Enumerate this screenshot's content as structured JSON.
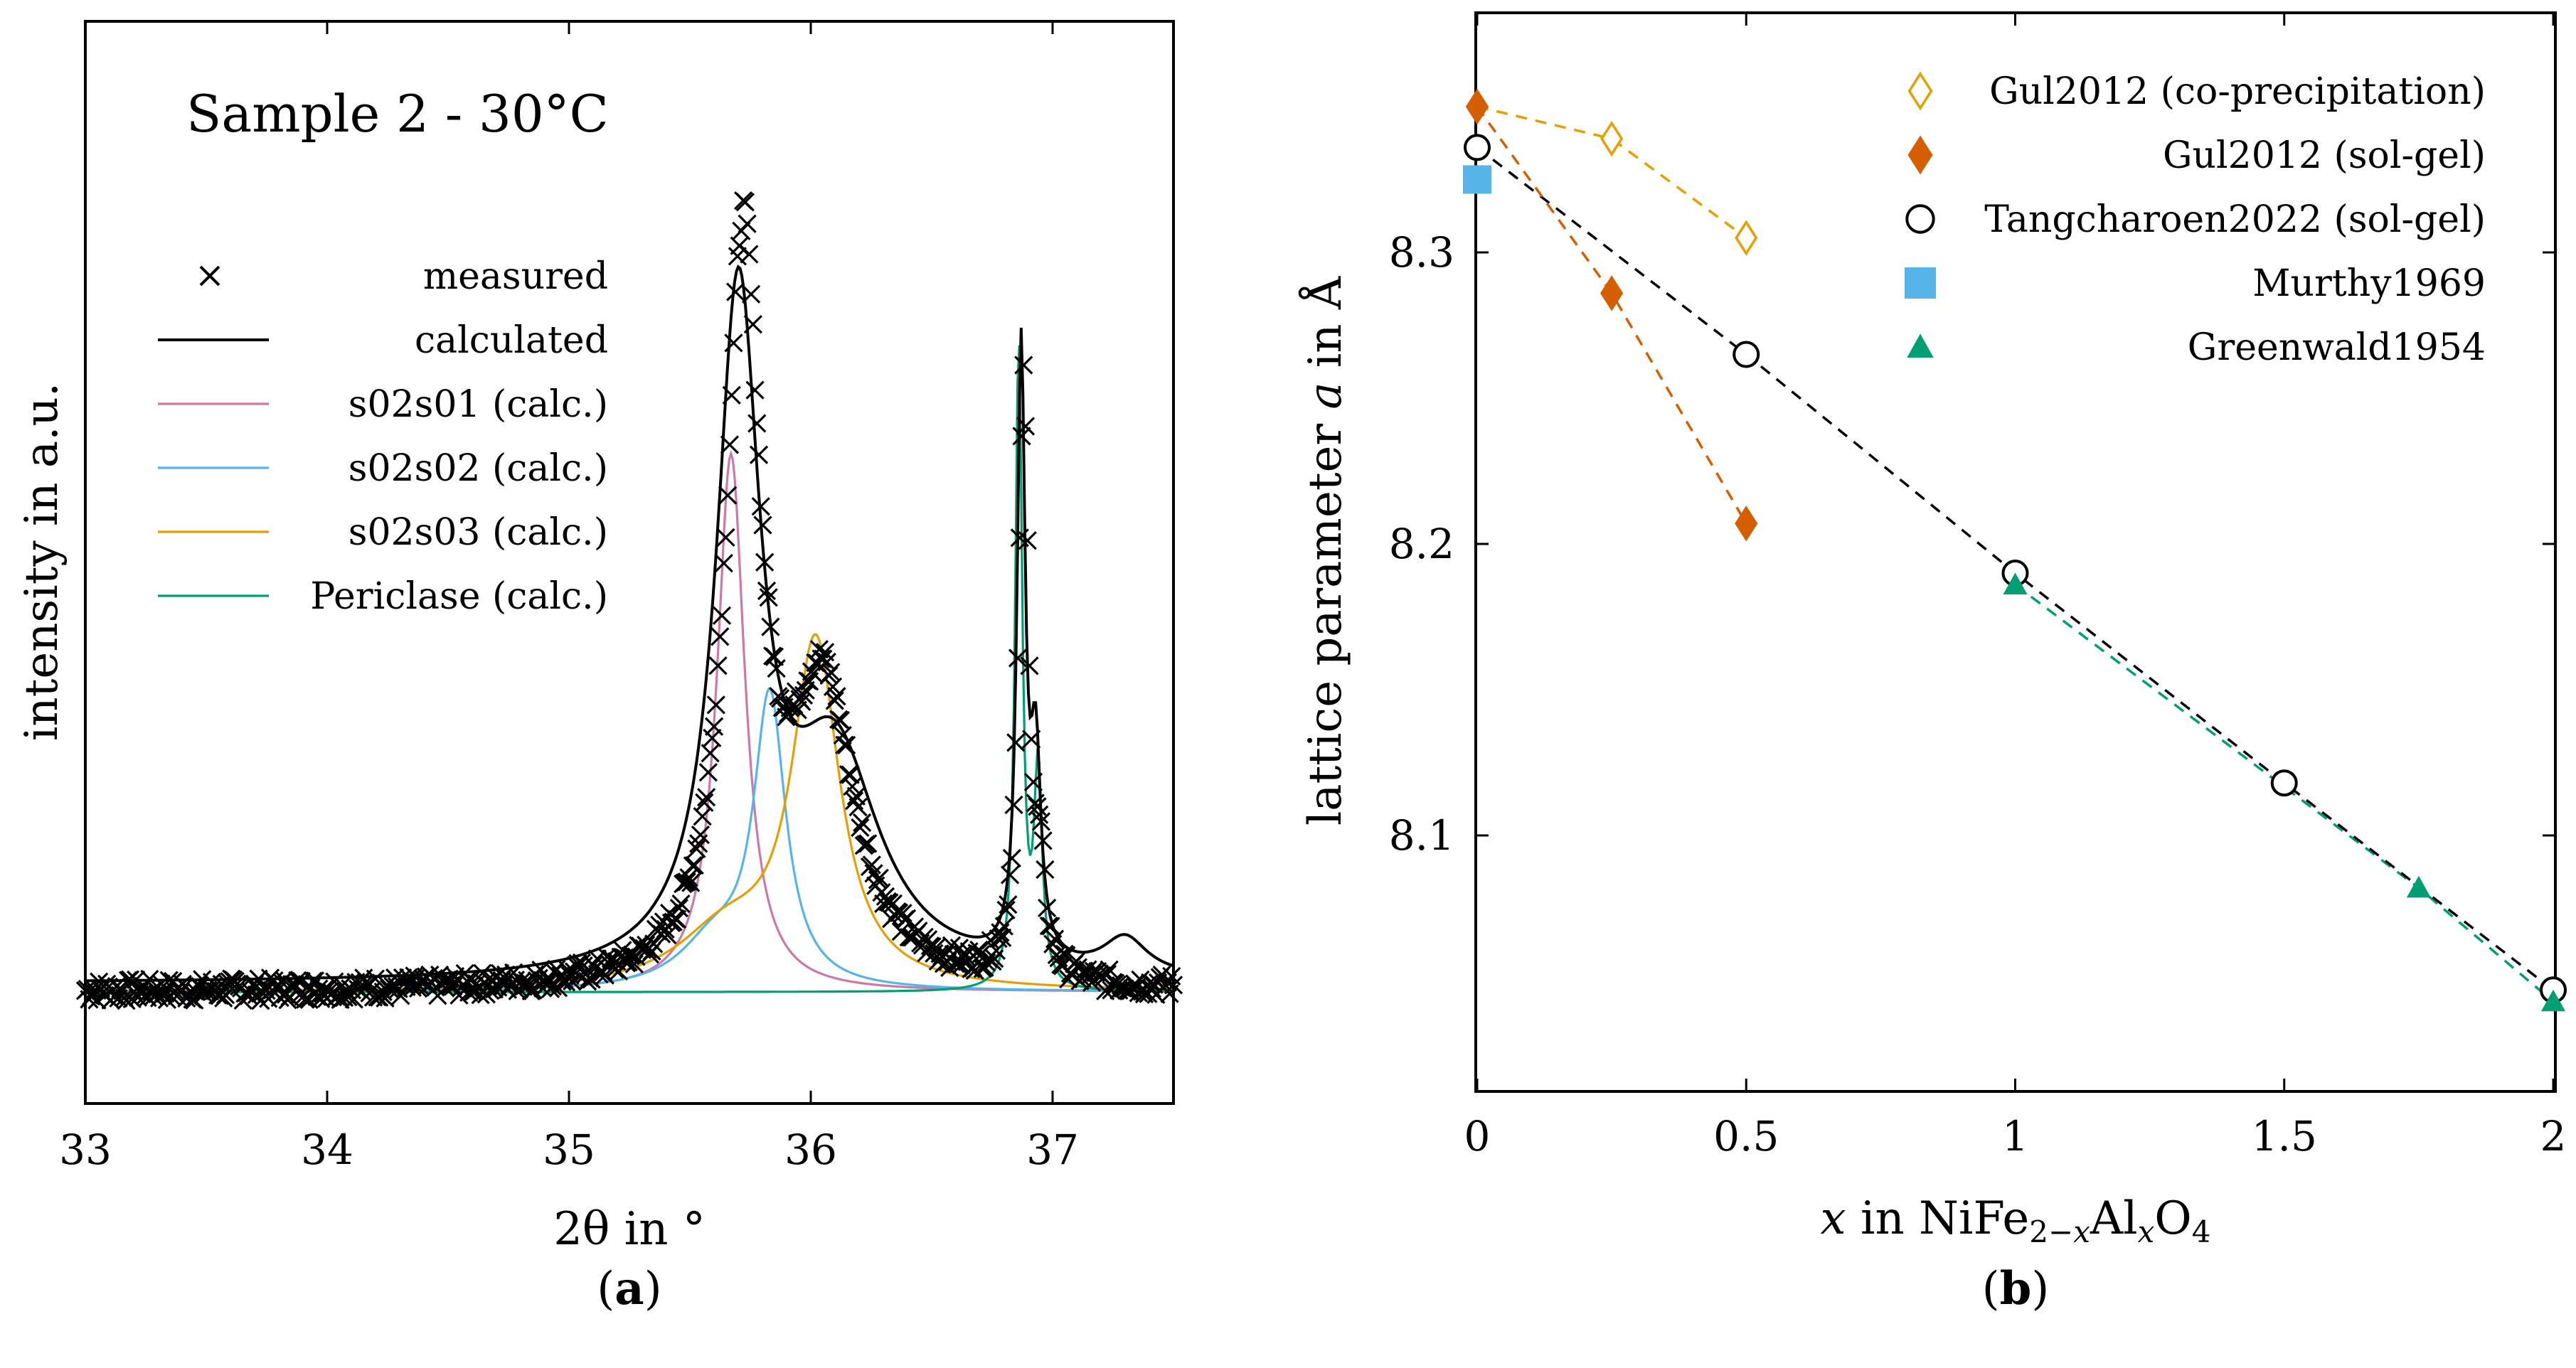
{
  "chart_data": [
    {
      "type": "line",
      "panel_label": "a",
      "annotation": "Sample 2 - 30°C",
      "xlabel": "2θ in °",
      "ylabel": "intensity in a.u.",
      "xlim": [
        33,
        37.5
      ],
      "ylim": [
        0,
        1.0
      ],
      "xticks": [
        "33",
        "34",
        "35",
        "36",
        "37"
      ],
      "legend_position": "top-left",
      "series": [
        {
          "name": "measured",
          "style": "markers-x",
          "color": "#000000",
          "peaks": [
            [
              35.72,
              0.81,
              0.17
            ],
            [
              36.05,
              0.32,
              0.32
            ],
            [
              36.88,
              0.66,
              0.05
            ],
            [
              36.95,
              0.1,
              0.05
            ]
          ],
          "baseline": 0.045,
          "noise": 0.012
        },
        {
          "name": "calculated",
          "style": "line",
          "color": "#000000",
          "peaks": [
            [
              35.7,
              0.74,
              0.22
            ],
            [
              36.1,
              0.24,
              0.45
            ],
            [
              36.87,
              0.67,
              0.04
            ],
            [
              36.93,
              0.22,
              0.05
            ],
            [
              37.3,
              0.04,
              0.22
            ]
          ],
          "baseline": 0.055
        },
        {
          "name": "s02s01 (calc.)",
          "style": "line",
          "color": "#cc79a7",
          "peaks": [
            [
              35.67,
              0.6,
              0.14
            ]
          ],
          "baseline": 0.045
        },
        {
          "name": "s02s02 (calc.)",
          "style": "line",
          "color": "#56b4e9",
          "peaks": [
            [
              35.83,
              0.32,
              0.16
            ],
            [
              35.6,
              0.05,
              0.35
            ]
          ],
          "baseline": 0.045
        },
        {
          "name": "s02s03 (calc.)",
          "style": "line",
          "color": "#e69f00",
          "peaks": [
            [
              36.02,
              0.38,
              0.24
            ],
            [
              35.65,
              0.06,
              0.5
            ]
          ],
          "baseline": 0.045
        },
        {
          "name": "Periclase (calc.)",
          "style": "line",
          "color": "#009e73",
          "peaks": [
            [
              36.86,
              0.72,
              0.035
            ],
            [
              36.94,
              0.24,
              0.04
            ]
          ],
          "baseline": 0.045
        }
      ]
    },
    {
      "type": "scatter",
      "panel_label": "b",
      "xlabel": "x in NiFe2−xAlxO4",
      "ylabel": "lattice parameter a in Å",
      "xlim": [
        0,
        2
      ],
      "ylim": [
        8.02,
        8.37
      ],
      "xticks": [
        "0",
        "0.5",
        "1",
        "1.5",
        "2"
      ],
      "yticks": [
        "8.1",
        "8.2",
        "8.3"
      ],
      "legend_position": "top-right",
      "series": [
        {
          "name": "Gul2012 (co-precipitation)",
          "marker": "diamond-open",
          "color": "#e69f00",
          "dashed": true,
          "x": [
            0,
            0.25,
            0.5
          ],
          "y": [
            8.35,
            8.339,
            8.305
          ]
        },
        {
          "name": "Gul2012 (sol-gel)",
          "marker": "diamond",
          "color": "#d55e00",
          "dashed": true,
          "x": [
            0,
            0.25,
            0.5
          ],
          "y": [
            8.35,
            8.286,
            8.207
          ]
        },
        {
          "name": "Tangcharoen2022 (sol-gel)",
          "marker": "circle-open",
          "color": "#000000",
          "dashed": true,
          "x": [
            0,
            0.5,
            1,
            1.5,
            2
          ],
          "y": [
            8.336,
            8.265,
            8.19,
            8.118,
            8.047
          ]
        },
        {
          "name": "Murthy1969",
          "marker": "square",
          "color": "#56b4e9",
          "dashed": false,
          "x": [
            0
          ],
          "y": [
            8.325
          ]
        },
        {
          "name": "Greenwald1954",
          "marker": "triangle",
          "color": "#009e73",
          "dashed": true,
          "x": [
            1,
            1.75,
            2
          ],
          "y": [
            8.186,
            8.082,
            8.043
          ]
        }
      ]
    }
  ]
}
